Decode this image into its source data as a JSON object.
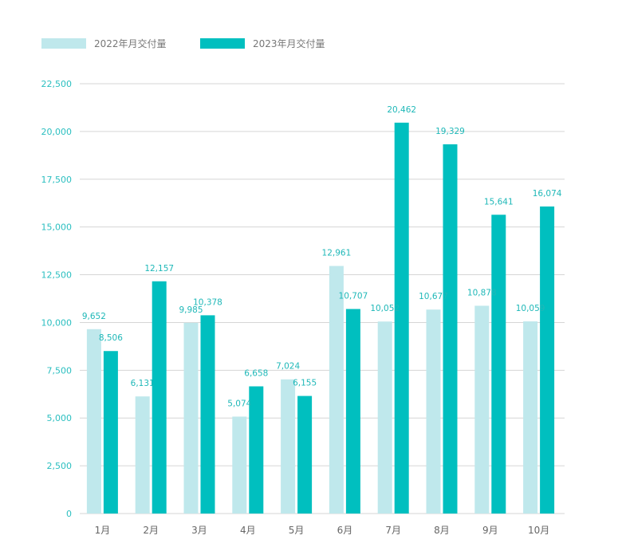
{
  "chart_data": {
    "type": "bar",
    "categories": [
      "1月",
      "2月",
      "3月",
      "4月",
      "5月",
      "6月",
      "7月",
      "8月",
      "9月",
      "10月"
    ],
    "series": [
      {
        "name": "2022年月交付量",
        "color": "#bfe8ec",
        "values": [
          9652,
          6131,
          9985,
          5074,
          7024,
          12961,
          10052,
          10677,
          10878,
          10059
        ],
        "labels": [
          "9,652",
          "6,131",
          "9,985",
          "5,074",
          "7,024",
          "12,961",
          "10,052",
          "10,677",
          "10,878",
          "10,059"
        ]
      },
      {
        "name": "2023年月交付量",
        "color": "#00bfbf",
        "values": [
          8506,
          12157,
          10378,
          6658,
          6155,
          10707,
          20462,
          19329,
          15641,
          16074
        ],
        "labels": [
          "8,506",
          "12,157",
          "10,378",
          "6,658",
          "6,155",
          "10,707",
          "20,462",
          "19,329",
          "15,641",
          "16,074"
        ]
      }
    ],
    "yticks": [
      "0",
      "2,500",
      "5,000",
      "7,500",
      "10,000",
      "12,500",
      "15,000",
      "17,500",
      "20,000",
      "22,500"
    ],
    "ylim": [
      0,
      22500
    ],
    "grid": true,
    "legend_position": "top-left"
  }
}
